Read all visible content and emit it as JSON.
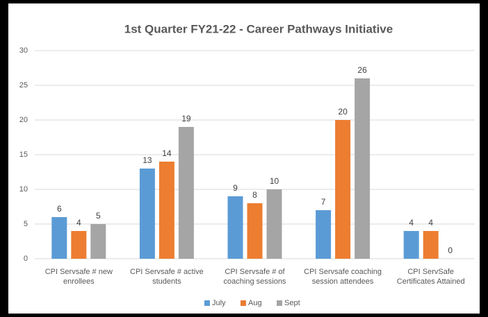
{
  "chart_data": {
    "type": "bar",
    "title": "1st Quarter FY21-22 - Career Pathways Initiative",
    "categories": [
      "CPI Servsafe # new enrollees",
      "CPI Servsafe # active students",
      "CPI Servsafe # of coaching sessions",
      "CPI Servsafe coaching session attendees",
      "CPI ServSafe Certificates Attained"
    ],
    "series": [
      {
        "name": "July",
        "color": "#5b9bd5",
        "values": [
          6,
          13,
          9,
          7,
          4
        ]
      },
      {
        "name": "Aug",
        "color": "#ed7d31",
        "values": [
          4,
          14,
          8,
          20,
          4
        ]
      },
      {
        "name": "Sept",
        "color": "#a5a5a5",
        "values": [
          5,
          19,
          10,
          26,
          0
        ]
      }
    ],
    "ylim": [
      0,
      30
    ],
    "yticks": [
      0,
      5,
      10,
      15,
      20,
      25,
      30
    ],
    "grid": true,
    "legend": "bottom"
  }
}
